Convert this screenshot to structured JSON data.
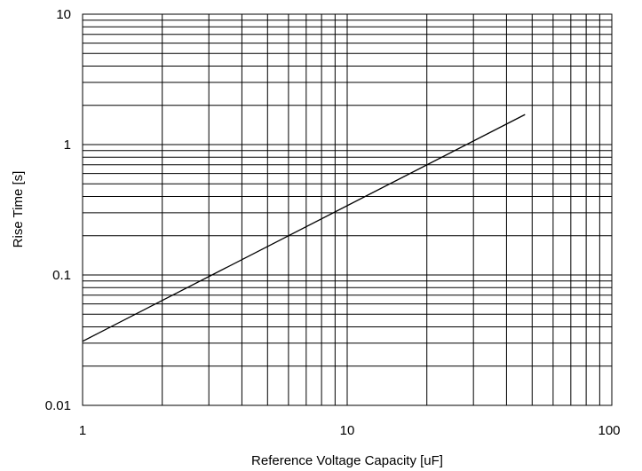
{
  "chart_data": {
    "type": "line",
    "xlabel": "Reference Voltage Capacity [uF]",
    "ylabel": "Rise Time [s]",
    "xscale": "log",
    "yscale": "log",
    "xlim": [
      1,
      100
    ],
    "ylim": [
      0.01,
      10
    ],
    "grid": true,
    "x_tick_labels": [
      "1",
      "10",
      "100"
    ],
    "y_tick_labels": [
      "0.01",
      "0.1",
      "1",
      "10"
    ],
    "series": [
      {
        "x": [
          1,
          47
        ],
        "y": [
          0.031,
          1.7
        ]
      }
    ],
    "colors": {
      "line": "#000000",
      "grid": "#000000",
      "background": "#ffffff"
    }
  }
}
